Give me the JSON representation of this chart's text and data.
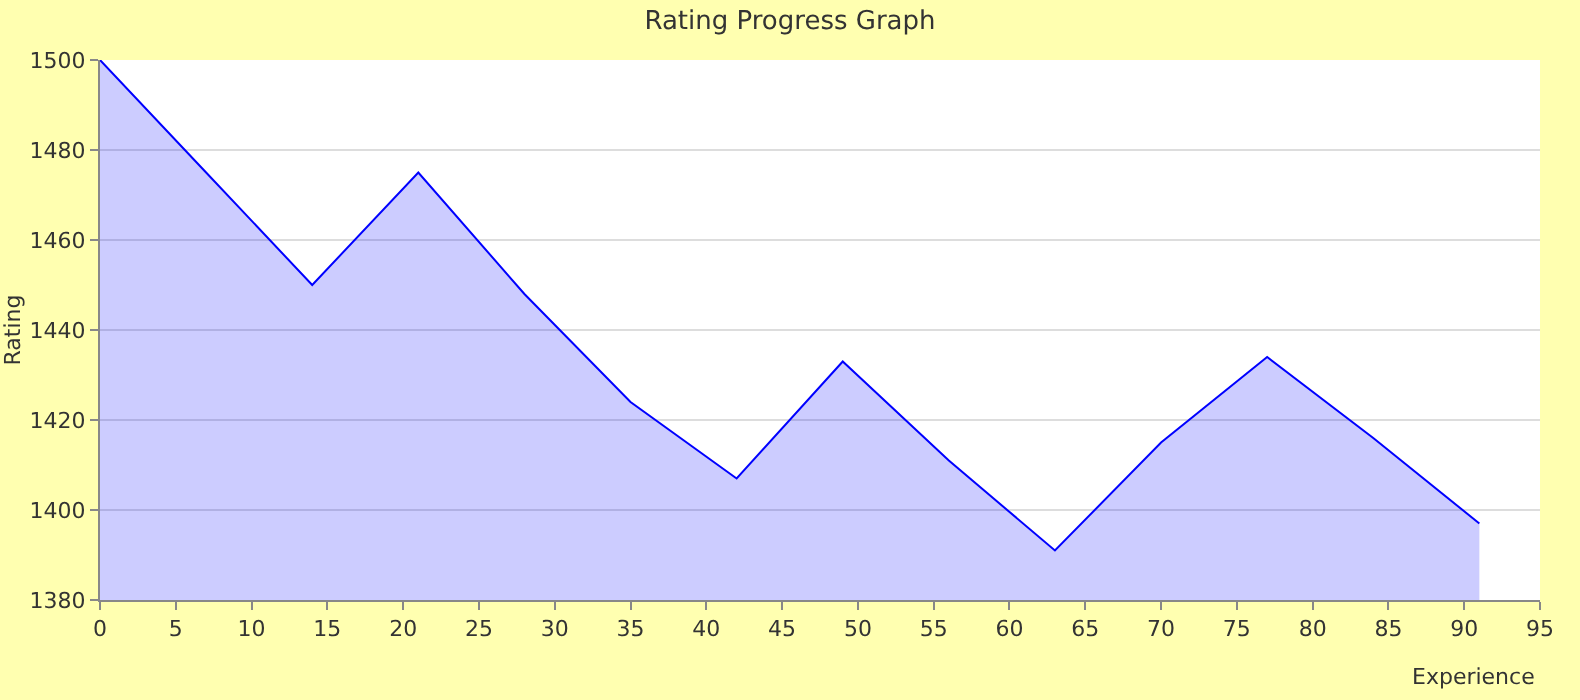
{
  "chart_data": {
    "type": "area",
    "title": "Rating Progress Graph",
    "xlabel": "Experience",
    "ylabel": "Rating",
    "x": [
      0,
      7,
      14,
      21,
      28,
      35,
      42,
      49,
      56,
      63,
      70,
      77,
      84,
      91
    ],
    "series": [
      {
        "color": "#0000ff",
        "values": [
          1500,
          1475,
          1450,
          1475,
          1448,
          1424,
          1407,
          1433,
          1411,
          1391,
          1415,
          1434,
          1416,
          1397
        ]
      }
    ],
    "xlim": [
      0,
      95
    ],
    "xticks": [
      0,
      5,
      10,
      15,
      20,
      25,
      30,
      35,
      40,
      45,
      50,
      55,
      60,
      65,
      70,
      75,
      80,
      85,
      90,
      95
    ],
    "ylim": [
      1380,
      1500
    ],
    "yticks": [
      1380,
      1400,
      1420,
      1440,
      1460,
      1480,
      1500
    ],
    "grid": "y",
    "marker": "none",
    "line_style": "solid"
  }
}
